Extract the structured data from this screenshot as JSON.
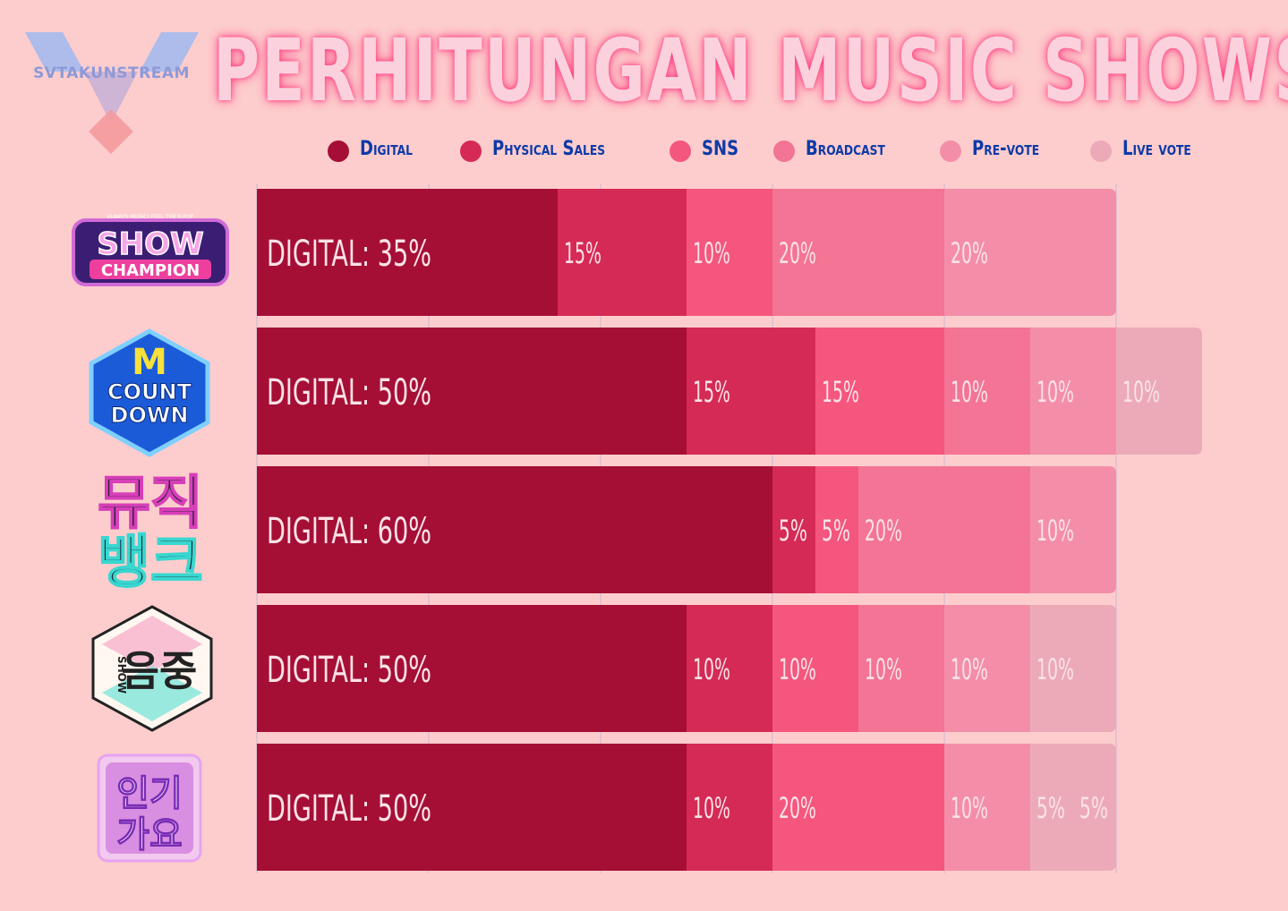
{
  "title": "PERHITUNGAN MUSIC SHOWS",
  "brand": "SVTAKUNSTREAM",
  "legend": [
    {
      "label": "Digital",
      "color": "#a50f35"
    },
    {
      "label": "Physical Sales",
      "color": "#d52a55"
    },
    {
      "label": "SNS",
      "color": "#f4567e"
    },
    {
      "label": "Broadcast",
      "color": "#f37494"
    },
    {
      "label": "Pre-vote",
      "color": "#f48ea8"
    },
    {
      "label": "Live vote",
      "color": "#ecaab8"
    }
  ],
  "shows": [
    {
      "logo_text": [
        "SHOW",
        "CHAMPION"
      ],
      "logo_small": "ALWAYS MUSIC! FEEL THE K-POP"
    },
    {
      "logo_text": [
        "M",
        "COUNT",
        "DOWN"
      ]
    },
    {
      "logo_text": [
        "뮤직",
        "뱅크"
      ]
    },
    {
      "logo_text": [
        "SHOW",
        "음중"
      ]
    },
    {
      "logo_text": [
        "인기",
        "가요"
      ]
    }
  ],
  "chart_data": {
    "type": "bar",
    "stacked": true,
    "orientation": "horizontal",
    "series_names": [
      "Digital",
      "Physical Sales",
      "SNS",
      "Broadcast",
      "Pre-vote",
      "Live vote"
    ],
    "categories": [
      "Show Champion",
      "M Countdown",
      "Music Bank",
      "Show! Music Core",
      "Inkigayo"
    ],
    "rows": [
      {
        "segments": [
          {
            "series": "Digital",
            "value": 35,
            "label": "DIGITAL: 35%"
          },
          {
            "series": "Physical Sales",
            "value": 15,
            "label": "15%"
          },
          {
            "series": "SNS",
            "value": 10,
            "label": "10%"
          },
          {
            "series": "Broadcast",
            "value": 20,
            "label": "20%"
          },
          {
            "series": "Pre-vote",
            "value": 20,
            "label": "20%"
          }
        ]
      },
      {
        "segments": [
          {
            "series": "Digital",
            "value": 50,
            "label": "DIGITAL: 50%"
          },
          {
            "series": "Physical Sales",
            "value": 15,
            "label": "15%"
          },
          {
            "series": "SNS",
            "value": 15,
            "label": "15%"
          },
          {
            "series": "Broadcast",
            "value": 10,
            "label": "10%"
          },
          {
            "series": "Pre-vote",
            "value": 10,
            "label": "10%"
          },
          {
            "series": "Live vote",
            "value": 10,
            "label": "10%"
          }
        ]
      },
      {
        "segments": [
          {
            "series": "Digital",
            "value": 60,
            "label": "DIGITAL: 60%"
          },
          {
            "series": "Physical Sales",
            "value": 5,
            "label": "5%"
          },
          {
            "series": "SNS",
            "value": 5,
            "label": "5%"
          },
          {
            "series": "Broadcast",
            "value": 20,
            "label": "20%"
          },
          {
            "series": "Pre-vote",
            "value": 10,
            "label": "10%"
          }
        ]
      },
      {
        "segments": [
          {
            "series": "Digital",
            "value": 50,
            "label": "DIGITAL: 50%"
          },
          {
            "series": "Physical Sales",
            "value": 10,
            "label": "10%"
          },
          {
            "series": "SNS",
            "value": 10,
            "label": "10%"
          },
          {
            "series": "Broadcast",
            "value": 10,
            "label": "10%"
          },
          {
            "series": "Pre-vote",
            "value": 10,
            "label": "10%"
          },
          {
            "series": "Live vote",
            "value": 10,
            "label": "10%"
          }
        ]
      },
      {
        "segments": [
          {
            "series": "Digital",
            "value": 50,
            "label": "DIGITAL: 50%"
          },
          {
            "series": "Physical Sales",
            "value": 10,
            "label": "10%"
          },
          {
            "series": "SNS",
            "value": 20,
            "label": "20%"
          },
          {
            "series": "Pre-vote",
            "value": 10,
            "label": "10%"
          },
          {
            "series": "Live vote",
            "value": 5,
            "label": "5%"
          },
          {
            "series": "Live vote",
            "value": 5,
            "label": "5%"
          }
        ]
      }
    ],
    "xlim": [
      0,
      110
    ],
    "grid": true
  }
}
